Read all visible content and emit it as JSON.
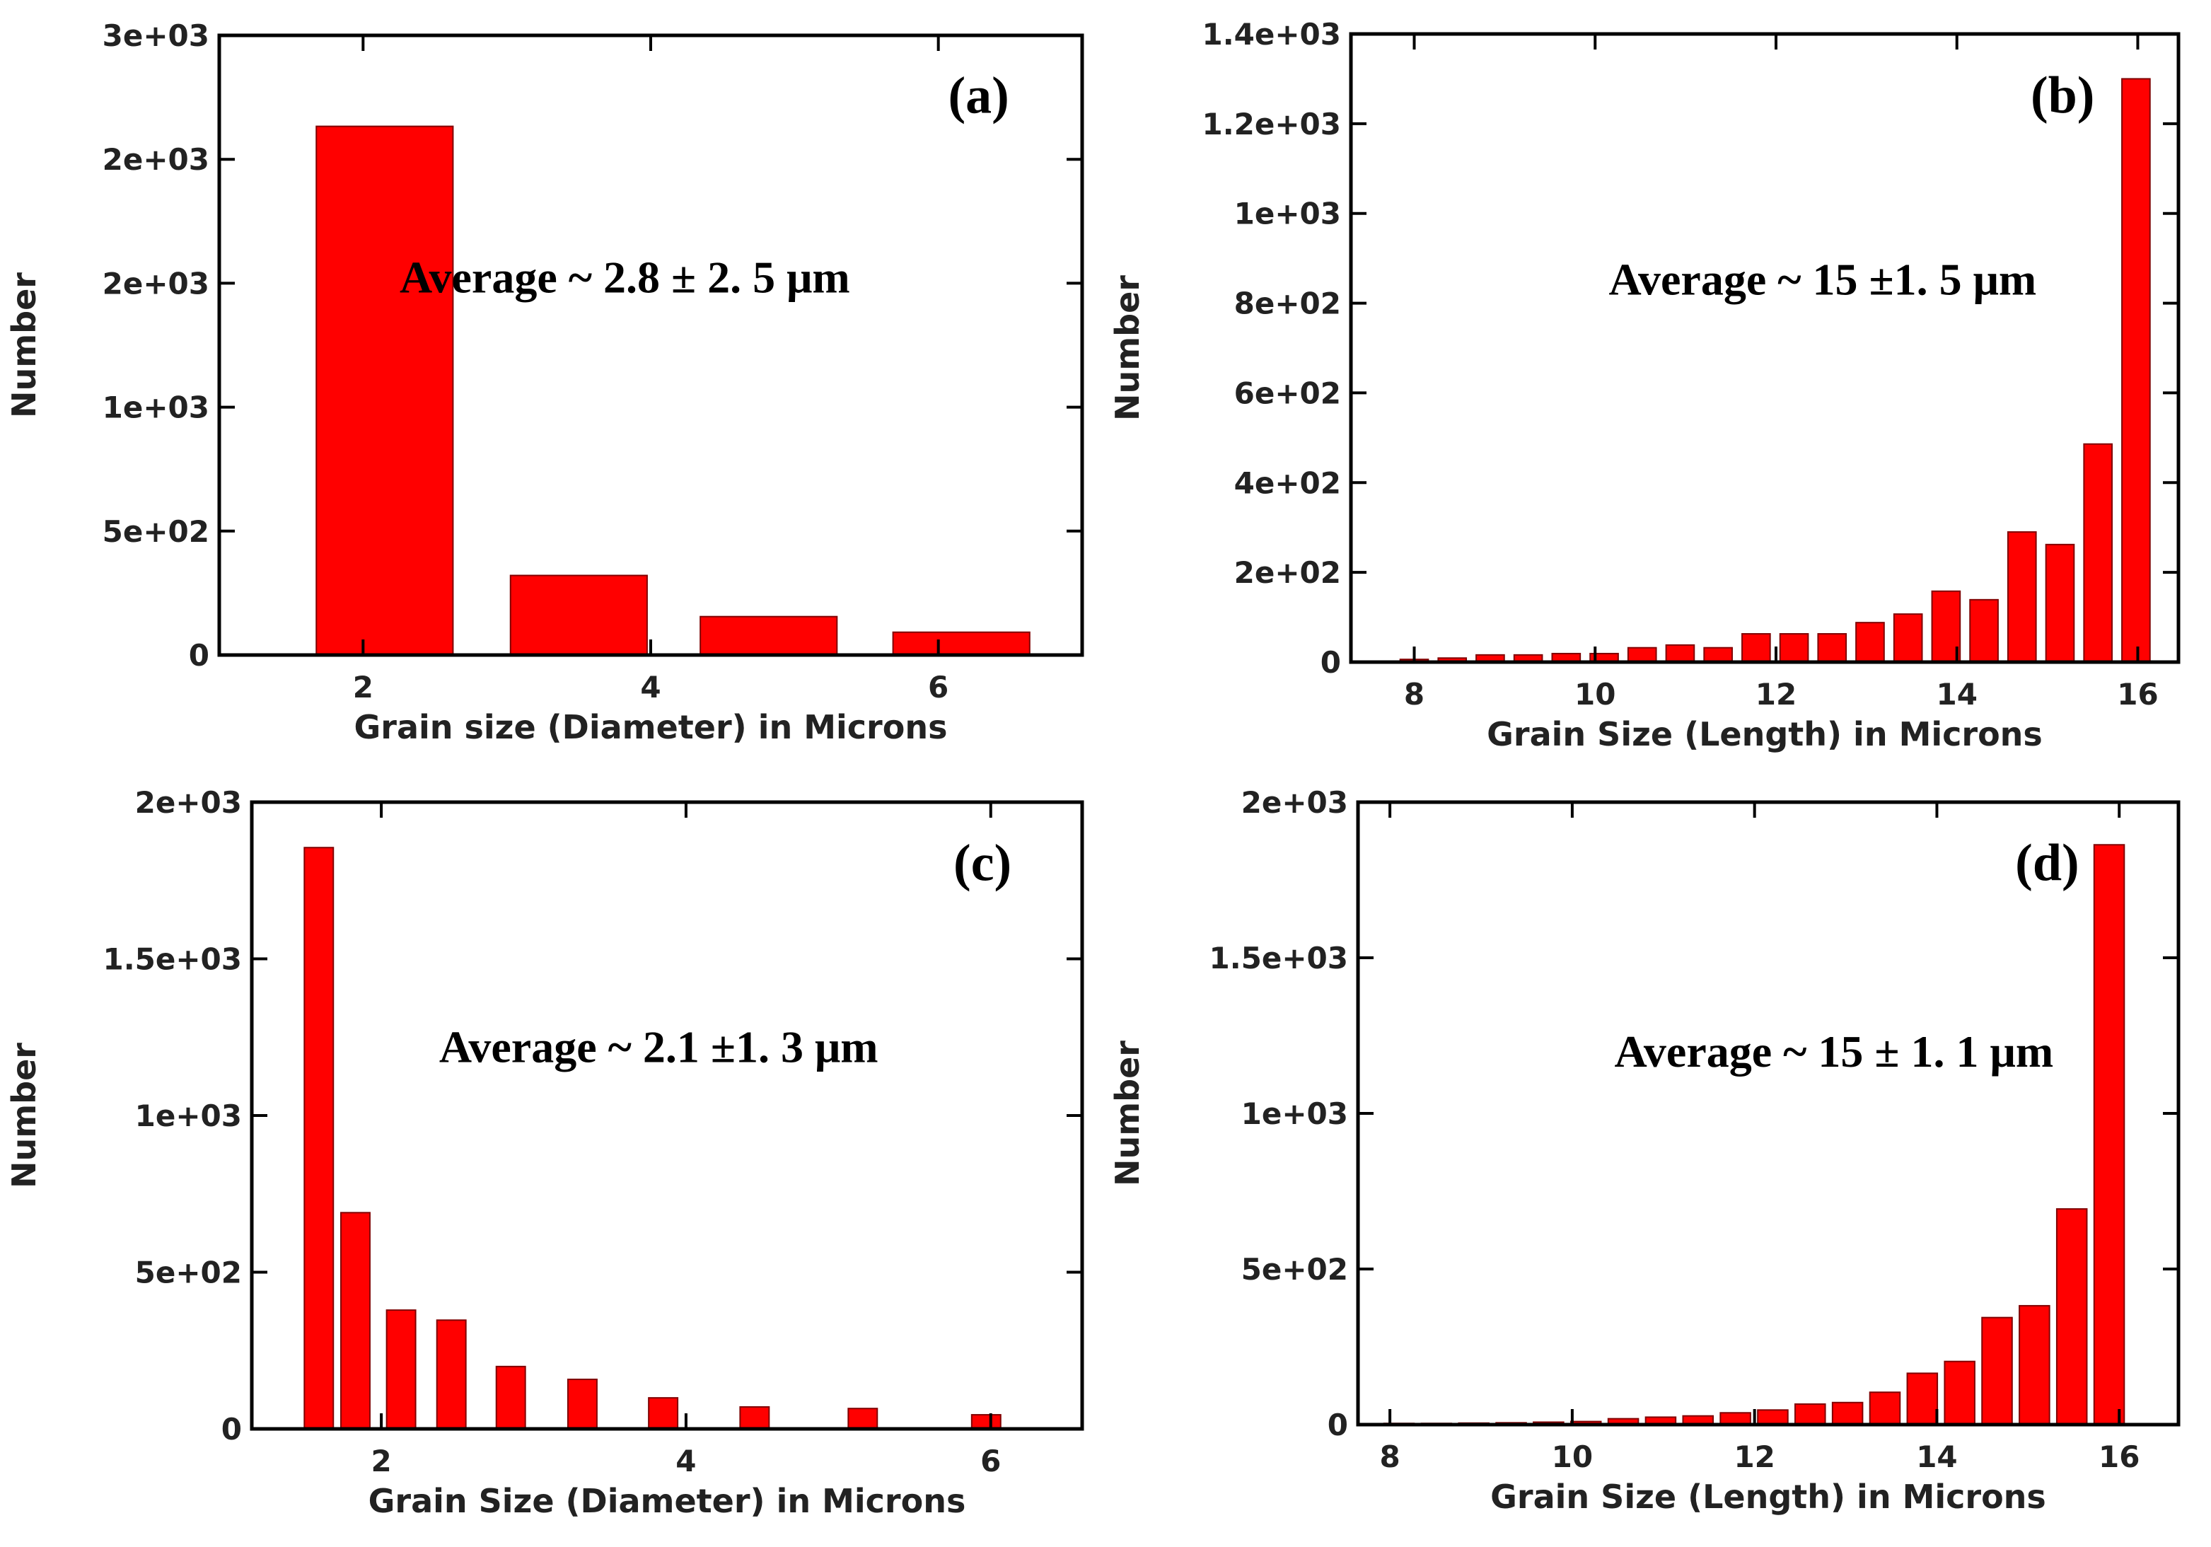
{
  "chart_data": [
    {
      "type": "bar",
      "x_label": "Grain size (Diameter) in Microns",
      "y_label": "Number",
      "annotations": [
        "(a)",
        "Average  ~ 2.8 ± 2. 5 μm"
      ],
      "x": [
        2.15,
        3.5,
        4.82,
        6.16
      ],
      "values": [
        2133,
        321,
        155,
        92
      ],
      "bar_width": 0.95,
      "color": "#ff0000",
      "xlim": [
        1,
        7
      ],
      "xticks": [
        2,
        4,
        6
      ],
      "ylim": [
        0,
        2500
      ],
      "yticks": [
        0,
        {
          "value": 500,
          "label": "5e+02"
        },
        {
          "value": 1000,
          "label": "1e+03"
        },
        {
          "value": 1500,
          "label": "2e+03"
        },
        {
          "value": 2000,
          "label": "2e+03"
        },
        {
          "value": 2500,
          "label": "3e+03"
        }
      ]
    },
    {
      "type": "bar",
      "x_label": "Grain Size (Length) in Microns",
      "y_label": "Number",
      "annotations": [
        "(b)",
        "Average ~ 15 ±1. 5 μm"
      ],
      "x": [
        8.0,
        8.42,
        8.84,
        9.26,
        9.68,
        10.1,
        10.52,
        10.94,
        11.36,
        11.78,
        12.2,
        12.62,
        13.04,
        13.46,
        13.88,
        14.3,
        14.72,
        15.14,
        15.56,
        15.98
      ],
      "values": [
        6,
        9,
        16,
        16,
        19,
        19,
        32,
        38,
        32,
        63,
        63,
        63,
        88,
        107,
        158,
        139,
        290,
        262,
        486,
        1300
      ],
      "bar_width": 0.31,
      "color": "#ff0000",
      "xlim": [
        7.3,
        16.45
      ],
      "xticks": [
        8,
        10,
        12,
        14,
        16
      ],
      "ylim": [
        0,
        1400
      ],
      "yticks": [
        0,
        {
          "value": 200,
          "label": "2e+02"
        },
        {
          "value": 400,
          "label": "4e+02"
        },
        {
          "value": 600,
          "label": "6e+02"
        },
        {
          "value": 800,
          "label": "8e+02"
        },
        {
          "value": 1000,
          "label": "1e+03"
        },
        {
          "value": 1200,
          "label": "1.2e+03"
        },
        {
          "value": 1400,
          "label": "1.4e+03"
        }
      ]
    },
    {
      "type": "bar",
      "x_label": "Grain Size (Diameter) in Microns",
      "y_label": "Number",
      "annotations": [
        "(c)",
        "Average ~ 2.1 ±1. 3 μm"
      ],
      "x": [
        1.59,
        1.83,
        2.13,
        2.46,
        2.85,
        3.32,
        3.85,
        4.45,
        5.16,
        5.97
      ],
      "values": [
        1855,
        690,
        379,
        347,
        199,
        158,
        99,
        70,
        65,
        45
      ],
      "bar_width": 0.19,
      "color": "#ff0000",
      "xlim": [
        1.15,
        6.6
      ],
      "xticks": [
        2,
        4,
        6
      ],
      "ylim": [
        0,
        2000
      ],
      "yticks": [
        0,
        {
          "value": 500,
          "label": "5e+02"
        },
        {
          "value": 1000,
          "label": "1e+03"
        },
        {
          "value": 1500,
          "label": "1.5e+03"
        },
        {
          "value": 2000,
          "label": "2e+03"
        }
      ]
    },
    {
      "type": "bar",
      "x_label": "Grain Size (Length) in Microns",
      "y_label": "Number",
      "annotations": [
        "(d)",
        "Average ~ 15 ± 1. 1 μm"
      ],
      "x": [
        8.1,
        8.51,
        8.92,
        9.33,
        9.74,
        10.15,
        10.56,
        10.97,
        11.38,
        11.79,
        12.2,
        12.61,
        13.02,
        13.43,
        13.84,
        14.25,
        14.66,
        15.07,
        15.48,
        15.89
      ],
      "values": [
        4,
        4,
        5,
        6,
        8,
        10,
        19,
        24,
        28,
        38,
        47,
        66,
        71,
        104,
        165,
        203,
        344,
        382,
        693,
        1863
      ],
      "bar_width": 0.33,
      "color": "#ff0000",
      "xlim": [
        7.65,
        16.65
      ],
      "xticks": [
        8,
        10,
        12,
        14,
        16
      ],
      "ylim": [
        0,
        2000
      ],
      "yticks": [
        0,
        {
          "value": 500,
          "label": "5e+02"
        },
        {
          "value": 1000,
          "label": "1e+03"
        },
        {
          "value": 1500,
          "label": "1.5e+03"
        },
        {
          "value": 2000,
          "label": "2e+03"
        }
      ]
    }
  ]
}
